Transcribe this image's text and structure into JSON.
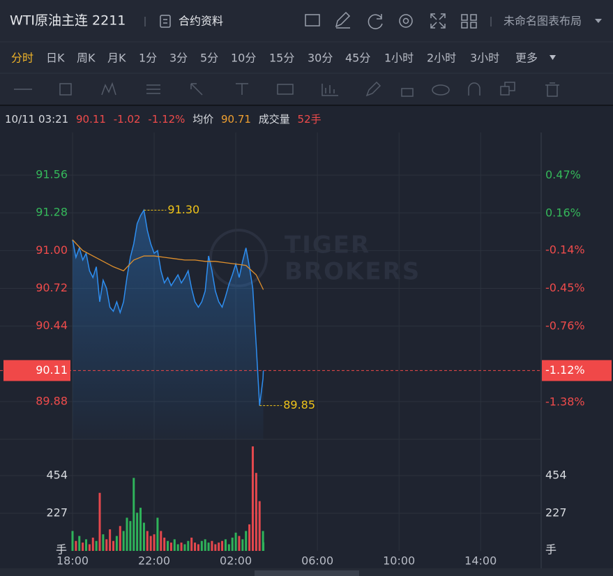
{
  "header": {
    "title": "WTI原油主连 2211",
    "contract_info": "合约资料",
    "layout_name": "未命名图表布局"
  },
  "periods": {
    "items": [
      "分时",
      "日K",
      "周K",
      "月K",
      "1分",
      "3分",
      "5分",
      "10分",
      "15分",
      "30分",
      "45分",
      "1小时",
      "2小时",
      "3小时",
      "更多"
    ],
    "active": 0
  },
  "quote": {
    "time": "10/11 03:21",
    "price": 90.11,
    "change": -1.02,
    "change_pct": "-1.12%",
    "avg_label": "均价",
    "avg": 90.71,
    "volume_label": "成交量",
    "volume": "52手"
  },
  "chart_data": {
    "type": "line",
    "watermark": [
      "TIGER",
      "BROKERS"
    ],
    "x": [
      "18:00",
      "18:10",
      "18:20",
      "18:30",
      "18:40",
      "18:50",
      "19:00",
      "19:10",
      "19:20",
      "19:30",
      "19:40",
      "19:50",
      "20:00",
      "20:10",
      "20:20",
      "20:30",
      "20:40",
      "20:50",
      "21:00",
      "21:10",
      "21:20",
      "21:30",
      "21:40",
      "21:50",
      "22:00",
      "22:10",
      "22:20",
      "22:30",
      "22:40",
      "22:50",
      "23:00",
      "23:10",
      "23:20",
      "23:30",
      "23:40",
      "23:50",
      "00:00",
      "00:10",
      "00:20",
      "00:30",
      "00:40",
      "00:50",
      "01:00",
      "01:10",
      "01:20",
      "01:30",
      "01:40",
      "01:50",
      "02:00",
      "02:10",
      "02:20",
      "02:30",
      "02:40",
      "02:50",
      "03:00",
      "03:10",
      "03:20",
      "03:21"
    ],
    "price": {
      "color": "#2e8ef0",
      "values": [
        91.08,
        90.95,
        91.02,
        90.93,
        90.98,
        90.85,
        90.8,
        90.88,
        90.62,
        90.78,
        90.72,
        90.58,
        90.55,
        90.62,
        90.54,
        90.62,
        90.8,
        90.95,
        91.05,
        91.2,
        91.26,
        91.3,
        91.15,
        91.05,
        90.98,
        91.0,
        90.85,
        90.76,
        90.8,
        90.74,
        90.78,
        90.82,
        90.76,
        90.8,
        90.85,
        90.72,
        90.62,
        90.58,
        90.62,
        90.7,
        90.96,
        90.85,
        90.7,
        90.62,
        90.58,
        90.66,
        90.75,
        90.82,
        90.9,
        90.8,
        90.92,
        91.02,
        90.88,
        90.72,
        90.3,
        89.85,
        90.05,
        90.11
      ]
    },
    "average": {
      "color": "#e0902c",
      "x": [
        "18:00",
        "18:30",
        "19:00",
        "19:30",
        "20:00",
        "20:30",
        "21:00",
        "21:30",
        "22:00",
        "22:30",
        "23:00",
        "23:30",
        "00:00",
        "00:30",
        "01:00",
        "01:30",
        "02:00",
        "02:30",
        "03:00",
        "03:21"
      ],
      "values": [
        91.08,
        91.0,
        90.96,
        90.92,
        90.88,
        90.85,
        90.93,
        90.96,
        90.96,
        90.95,
        90.94,
        90.93,
        90.93,
        90.92,
        90.92,
        90.91,
        90.9,
        90.89,
        90.82,
        90.71
      ]
    },
    "volume": {
      "values": [
        120,
        60,
        90,
        50,
        70,
        40,
        80,
        60,
        350,
        100,
        70,
        130,
        60,
        90,
        150,
        120,
        200,
        180,
        440,
        230,
        260,
        170,
        120,
        90,
        100,
        200,
        120,
        80,
        60,
        50,
        70,
        40,
        50,
        40,
        60,
        80,
        50,
        40,
        60,
        70,
        50,
        60,
        40,
        50,
        60,
        70,
        40,
        80,
        110,
        90,
        70,
        120,
        160,
        630,
        470,
        300,
        120,
        52
      ],
      "ylim": [
        0,
        660
      ],
      "yticks": [
        227,
        454
      ],
      "unit": "手",
      "up_color": "#2fb35a",
      "down_color": "#e5484d"
    },
    "xlim": [
      "18:00",
      "17:00"
    ],
    "xticks": [
      "18:00",
      "22:00",
      "02:00",
      "06:00",
      "10:00",
      "14:00"
    ],
    "ylim": [
      89.6,
      91.85
    ],
    "yticks": [
      91.56,
      91.28,
      {
        "value": 91.0,
        "label": "91.00"
      },
      90.72,
      90.44,
      89.88
    ],
    "y2lim": [
      -1.68,
      0.79
    ],
    "y2ticks": [
      {
        "value": 0.47,
        "label": "0.47%"
      },
      {
        "value": 0.16,
        "label": "0.16%"
      },
      {
        "value": -0.14,
        "label": "-0.14%"
      },
      {
        "value": -0.45,
        "label": "-0.45%"
      },
      {
        "value": -0.76,
        "label": "-0.76%"
      },
      {
        "value": -1.38,
        "label": "-1.38%"
      }
    ],
    "max": {
      "x": "21:30",
      "value": 91.3,
      "label": "91.30"
    },
    "min": {
      "x": "03:10",
      "value": 89.85
    },
    "grid": true,
    "up_color": "#35b85a",
    "down_color": "#ef4b4b",
    "last_color": "#f04848"
  }
}
